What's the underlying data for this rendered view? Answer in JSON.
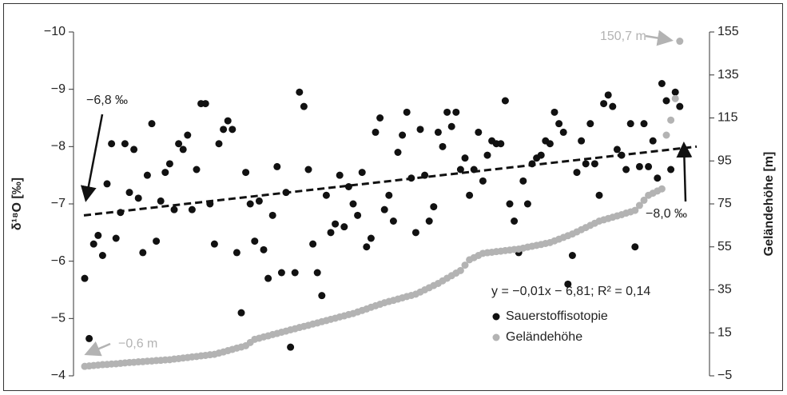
{
  "chart_data": {
    "type": "scatter",
    "y_label": "δ¹⁸O [‰]",
    "y2_label": "Geländehöhe [m]",
    "ylim": [
      -4,
      -10
    ],
    "yticks": [
      {
        "value": -10,
        "label": "−10"
      },
      {
        "value": -9,
        "label": "−9"
      },
      {
        "value": -8,
        "label": "−8"
      },
      {
        "value": -7,
        "label": "−7"
      },
      {
        "value": -6,
        "label": "−6"
      },
      {
        "value": -5,
        "label": "−5"
      },
      {
        "value": -4,
        "label": "−4"
      }
    ],
    "y2lim": [
      -5,
      155
    ],
    "y2ticks": [
      {
        "value": -5,
        "label": "−5"
      },
      15,
      35,
      55,
      75,
      95,
      115,
      135,
      155
    ],
    "legend": "bottom-right",
    "series": [
      {
        "name": "Sauerstoffisotopie",
        "color": "#111111",
        "values": [
          -5.7,
          -4.65,
          -6.3,
          -6.45,
          -6.1,
          -7.35,
          -8.05,
          -6.4,
          -6.85,
          -8.05,
          -7.2,
          -7.95,
          -7.1,
          -6.15,
          -7.5,
          -8.4,
          -6.35,
          -7.05,
          -7.55,
          -7.7,
          -6.9,
          -8.05,
          -7.95,
          -8.2,
          -6.9,
          -7.6,
          -8.75,
          -8.75,
          -7.0,
          -6.3,
          -8.05,
          -8.3,
          -8.45,
          -8.3,
          -6.15,
          -5.1,
          -7.55,
          -7.0,
          -6.35,
          -7.05,
          -6.2,
          -5.7,
          -6.8,
          -7.65,
          -5.8,
          -7.2,
          -4.5,
          -5.8,
          -8.95,
          -8.7,
          -7.6,
          -6.3,
          -5.8,
          -5.4,
          -7.15,
          -6.5,
          -6.65,
          -7.5,
          -6.6,
          -7.3,
          -7.0,
          -6.8,
          -7.55,
          -6.25,
          -6.4,
          -8.25,
          -8.5,
          -6.9,
          -7.15,
          -6.7,
          -7.9,
          -8.2,
          -8.6,
          -7.45,
          -6.5,
          -8.3,
          -7.5,
          -6.7,
          -6.95,
          -8.25,
          -8.0,
          -8.6,
          -8.35,
          -8.6,
          -7.6,
          -7.8,
          -7.15,
          -7.6,
          -8.25,
          -7.4,
          -7.85,
          -8.1,
          -8.05,
          -8.05,
          -8.8,
          -7.0,
          -6.7,
          -6.15,
          -7.4,
          -7.0,
          -7.7,
          -7.8,
          -7.85,
          -8.1,
          -8.05,
          -8.6,
          -8.4,
          -8.25,
          -5.6,
          -6.1,
          -7.55,
          -8.1,
          -7.7,
          -8.4,
          -7.7,
          -7.15,
          -8.75,
          -8.9,
          -8.7,
          -7.95,
          -7.85,
          -7.6,
          -8.4,
          -6.25,
          -7.65,
          -8.4,
          -7.65,
          -8.1,
          -7.45,
          -9.1,
          -8.8,
          -7.6,
          -8.95,
          -8.7
        ]
      },
      {
        "name": "Geländehöhe",
        "color": "#b3b3b3",
        "axis": "y2",
        "values": [
          -0.6,
          -0.4,
          -0.2,
          0,
          0.2,
          0.3,
          0.5,
          0.6,
          0.8,
          1,
          1.2,
          1.3,
          1.5,
          1.6,
          1.8,
          1.9,
          2.1,
          2.2,
          2.4,
          2.5,
          2.8,
          3,
          3.3,
          3.5,
          3.8,
          4,
          4.3,
          4.5,
          4.8,
          5,
          5.6,
          6.1,
          6.7,
          7.3,
          7.9,
          8.4,
          9,
          10.5,
          12,
          12.5,
          13.1,
          13.6,
          14.2,
          14.7,
          15.3,
          15.8,
          16.4,
          16.9,
          17.5,
          18,
          18.5,
          19.1,
          19.6,
          20.2,
          20.7,
          21.3,
          21.8,
          22.4,
          22.9,
          23.5,
          24,
          24.7,
          25.4,
          26.1,
          26.9,
          27.6,
          28.3,
          29,
          29.6,
          30.1,
          30.7,
          31.3,
          31.9,
          32.4,
          33,
          34,
          35,
          36,
          37,
          38,
          39.2,
          40.4,
          41.6,
          42.8,
          44,
          46.5,
          49,
          50,
          51,
          52,
          52.3,
          52.5,
          52.8,
          53,
          53.3,
          53.5,
          53.8,
          54,
          54.4,
          54.9,
          55.3,
          55.7,
          56.1,
          56.6,
          57,
          57.8,
          58.6,
          59.4,
          60.2,
          61,
          62,
          63,
          64,
          65,
          66,
          67,
          67.6,
          68.2,
          68.8,
          69.4,
          70,
          70.7,
          71.3,
          72,
          74.3,
          76.7,
          79,
          80,
          81,
          82,
          107,
          114,
          124,
          150.7
        ],
        "value_labels": [
          "−0,6 m",
          null,
          null,
          null,
          null,
          null,
          null,
          null,
          null,
          null,
          null,
          null,
          null,
          null,
          null,
          null,
          null,
          null,
          null,
          null,
          null,
          null,
          null,
          null,
          null,
          null,
          null,
          null,
          null,
          null,
          null,
          null,
          null,
          null,
          null,
          null,
          null,
          null,
          null,
          null,
          null,
          null,
          null,
          null,
          null,
          null,
          null,
          null,
          null,
          null,
          null,
          null,
          null,
          null,
          null,
          null,
          null,
          null,
          null,
          null,
          null,
          null,
          null,
          null,
          null,
          null,
          null,
          null,
          null,
          null,
          null,
          null,
          null,
          null,
          null,
          null,
          null,
          null,
          null,
          null,
          null,
          null,
          null,
          null,
          null,
          null,
          null,
          null,
          null,
          null,
          null,
          null,
          null,
          null,
          null,
          null,
          null,
          null,
          null,
          null,
          null,
          null,
          null,
          null,
          null,
          null,
          null,
          null,
          null,
          null,
          null,
          null,
          null,
          null,
          null,
          null,
          null,
          null,
          null,
          null,
          null,
          null,
          null,
          null,
          null,
          null,
          null,
          null,
          null,
          null,
          null,
          null,
          null,
          "150,7 m"
        ]
      }
    ],
    "trendline": {
      "equation": "y = −0,01x − 6,81; R² = 0,14",
      "start": {
        "value": -6.8,
        "label": "−6,8 ‰"
      },
      "end": {
        "value": -8.0,
        "label": "−8,0 ‰"
      }
    }
  }
}
